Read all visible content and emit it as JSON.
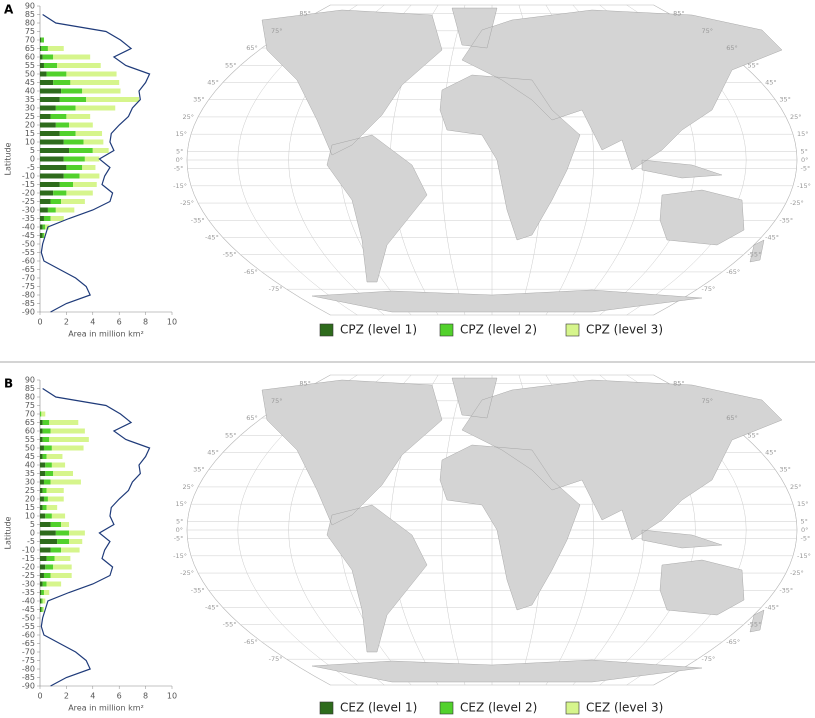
{
  "chart_data": [
    {
      "type": "bar",
      "orientation": "horizontal",
      "stacked": true,
      "panel_label": "A",
      "ylabel": "Latitude",
      "xlabel": "Area in million km²",
      "xlim": [
        0,
        10
      ],
      "xticks": [
        0,
        2,
        4,
        6,
        8,
        10
      ],
      "ylim": [
        -90,
        90
      ],
      "yticks": [
        90,
        85,
        80,
        75,
        70,
        65,
        60,
        55,
        50,
        45,
        40,
        35,
        30,
        25,
        20,
        15,
        10,
        5,
        0,
        -5,
        -10,
        -15,
        -20,
        -25,
        -30,
        -35,
        -40,
        -45,
        -50,
        -55,
        -60,
        -65,
        -70,
        -75,
        -80,
        -85,
        -90
      ],
      "y": [
        70,
        65,
        60,
        55,
        50,
        45,
        40,
        35,
        30,
        25,
        20,
        15,
        10,
        5,
        0,
        -5,
        -10,
        -15,
        -20,
        -25,
        -30,
        -35,
        -40,
        -45
      ],
      "series": [
        {
          "name": "CPZ (level 1)",
          "color": "#2e6b1c",
          "values": [
            0.1,
            0.1,
            0.2,
            0.3,
            0.5,
            1.0,
            1.6,
            1.5,
            1.2,
            0.8,
            1.2,
            1.5,
            1.8,
            2.2,
            1.8,
            2.0,
            1.8,
            1.5,
            1.0,
            0.8,
            0.6,
            0.3,
            0.2,
            0.2
          ]
        },
        {
          "name": "CPZ (level 2)",
          "color": "#52d12c",
          "values": [
            0.2,
            0.5,
            0.8,
            1.0,
            1.5,
            1.3,
            1.6,
            2.0,
            1.5,
            1.2,
            1.0,
            1.2,
            1.5,
            1.8,
            1.6,
            1.2,
            1.2,
            1.0,
            1.0,
            0.8,
            0.6,
            0.5,
            0.2,
            0.1
          ]
        },
        {
          "name": "CPZ (level 3)",
          "color": "#d6f58c",
          "values": [
            0,
            1.2,
            2.8,
            3.3,
            3.8,
            3.7,
            2.9,
            4.0,
            3.0,
            1.8,
            1.8,
            2.0,
            1.5,
            1.2,
            1.1,
            1.0,
            1.5,
            1.8,
            2.0,
            1.8,
            1.4,
            1.0,
            0.3,
            0.1
          ]
        }
      ],
      "line": {
        "color": "#1f3b7a",
        "y": [
          85,
          80,
          75,
          70,
          65,
          60,
          55,
          50,
          45,
          40,
          35,
          30,
          25,
          20,
          15,
          10,
          5,
          0,
          -5,
          -10,
          -15,
          -20,
          -25,
          -30,
          -35,
          -40,
          -45,
          -50,
          -55,
          -60,
          -65,
          -70,
          -75,
          -80,
          -85,
          -90
        ],
        "values": [
          0.2,
          1.2,
          5.0,
          6.1,
          6.9,
          5.6,
          6.5,
          8.3,
          8.0,
          7.5,
          7.6,
          7.0,
          6.7,
          6.0,
          5.4,
          5.3,
          5.6,
          4.5,
          5.3,
          4.9,
          4.7,
          5.5,
          5.3,
          4.0,
          2.2,
          0.6,
          0.4,
          0.2,
          0.1,
          0.3,
          1.5,
          2.7,
          3.5,
          3.8,
          2.0,
          0.8
        ]
      },
      "map_labels": [
        "85°",
        "75°",
        "65°",
        "55°",
        "45°",
        "35°",
        "25°",
        "15°",
        "5°",
        "0°",
        "-5°",
        "-15°",
        "-25°",
        "-35°",
        "-45°",
        "-55°",
        "-65°",
        "-75°"
      ]
    },
    {
      "type": "bar",
      "orientation": "horizontal",
      "stacked": true,
      "panel_label": "B",
      "ylabel": "Latitude",
      "xlabel": "Area in million km²",
      "xlim": [
        0,
        10
      ],
      "xticks": [
        0,
        2,
        4,
        6,
        8,
        10
      ],
      "ylim": [
        -90,
        90
      ],
      "yticks": [
        90,
        85,
        80,
        75,
        70,
        65,
        60,
        55,
        50,
        45,
        40,
        35,
        30,
        25,
        20,
        15,
        10,
        5,
        0,
        -5,
        -10,
        -15,
        -20,
        -25,
        -30,
        -35,
        -40,
        -45,
        -50,
        -55,
        -60,
        -65,
        -70,
        -75,
        -80,
        -85,
        -90
      ],
      "y": [
        70,
        65,
        60,
        55,
        50,
        45,
        40,
        35,
        30,
        25,
        20,
        15,
        10,
        5,
        0,
        -5,
        -10,
        -15,
        -20,
        -25,
        -30,
        -35,
        -40,
        -45
      ],
      "series": [
        {
          "name": "CEZ (level 1)",
          "color": "#2e6b1c",
          "values": [
            0,
            0.2,
            0.2,
            0.2,
            0.3,
            0.2,
            0.4,
            0.4,
            0.3,
            0.2,
            0.3,
            0.2,
            0.4,
            0.8,
            1.2,
            1.3,
            0.8,
            0.5,
            0.4,
            0.3,
            0.2,
            0.1,
            0.1,
            0.1
          ]
        },
        {
          "name": "CEZ (level 2)",
          "color": "#52d12c",
          "values": [
            0.1,
            0.5,
            0.6,
            0.5,
            0.6,
            0.3,
            0.5,
            0.6,
            0.5,
            0.3,
            0.3,
            0.3,
            0.5,
            0.8,
            1.0,
            0.9,
            0.8,
            0.6,
            0.6,
            0.5,
            0.3,
            0.2,
            0.1,
            0.1
          ]
        },
        {
          "name": "CEZ (level 3)",
          "color": "#d6f58c",
          "values": [
            0.3,
            2.2,
            2.6,
            3.0,
            2.4,
            1.2,
            1.0,
            1.5,
            2.3,
            1.3,
            1.2,
            0.8,
            1.0,
            0.6,
            1.2,
            1.0,
            1.4,
            1.2,
            1.4,
            1.6,
            1.1,
            0.4,
            0.2,
            0.1
          ]
        }
      ],
      "line": {
        "color": "#1f3b7a",
        "y": [
          85,
          80,
          75,
          70,
          65,
          60,
          55,
          50,
          45,
          40,
          35,
          30,
          25,
          20,
          15,
          10,
          5,
          0,
          -5,
          -10,
          -15,
          -20,
          -25,
          -30,
          -35,
          -40,
          -45,
          -50,
          -55,
          -60,
          -65,
          -70,
          -75,
          -80,
          -85,
          -90
        ],
        "values": [
          0.2,
          1.2,
          5.0,
          6.1,
          6.9,
          5.6,
          6.5,
          8.3,
          8.0,
          7.5,
          7.6,
          7.0,
          6.7,
          6.0,
          5.4,
          5.3,
          5.6,
          4.5,
          5.3,
          4.9,
          4.7,
          5.5,
          5.3,
          4.0,
          2.2,
          0.6,
          0.4,
          0.2,
          0.1,
          0.3,
          1.5,
          2.7,
          3.5,
          3.8,
          2.0,
          0.8
        ]
      },
      "map_labels": [
        "85°",
        "75°",
        "65°",
        "55°",
        "45°",
        "35°",
        "25°",
        "15°",
        "5°",
        "0°",
        "-5°",
        "-15°",
        "-25°",
        "-35°",
        "-45°",
        "-55°",
        "-65°",
        "-75°"
      ]
    }
  ]
}
